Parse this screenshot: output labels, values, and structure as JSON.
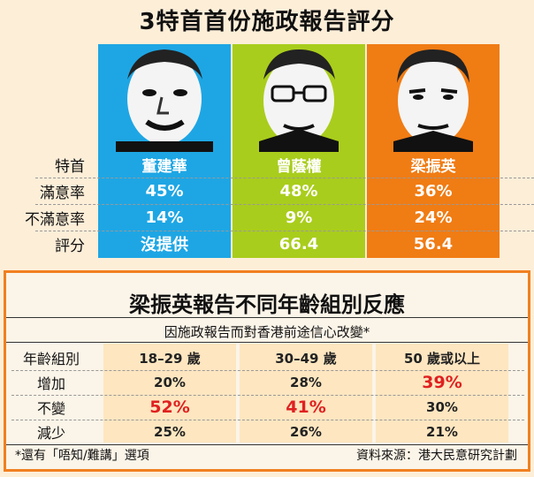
{
  "title": "3特首首份施政報告評分",
  "colors": {
    "tung": "#1ea6e4",
    "tsang": "#a9cd1c",
    "leung": "#f07c14",
    "highlight": "#e02020",
    "frame": "#f08020"
  },
  "chart_data": [
    {
      "type": "table",
      "title": "3特首首份施政報告評分",
      "row_labels": [
        "特首",
        "滿意率",
        "不滿意率",
        "評分"
      ],
      "columns": [
        {
          "name": "董建華",
          "values": [
            "45%",
            "14%",
            "沒提供"
          ]
        },
        {
          "name": "曾蔭權",
          "values": [
            "48%",
            "9%",
            "66.4"
          ]
        },
        {
          "name": "梁振英",
          "values": [
            "36%",
            "24%",
            "56.4"
          ]
        }
      ]
    },
    {
      "type": "table",
      "title": "梁振英報告不同年齡組別反應",
      "subtitle": "因施政報告而對香港前途信心改變*",
      "row_header": "年齡組別",
      "categories": [
        "18–29 歲",
        "30–49 歲",
        "50 歲或以上"
      ],
      "rows": [
        {
          "label": "增加",
          "values": [
            "20%",
            "28%",
            "39%"
          ],
          "highlight": [
            false,
            false,
            true
          ]
        },
        {
          "label": "不變",
          "values": [
            "52%",
            "41%",
            "30%"
          ],
          "highlight": [
            true,
            true,
            false
          ]
        },
        {
          "label": "減少",
          "values": [
            "25%",
            "26%",
            "21%"
          ],
          "highlight": [
            false,
            false,
            false
          ]
        }
      ]
    }
  ],
  "footnote": "*還有「唔知/難講」選項",
  "source": "資料來源：港大民意研究計劃",
  "portraits": [
    {
      "icon": "tung-portrait-icon"
    },
    {
      "icon": "tsang-portrait-icon"
    },
    {
      "icon": "leung-portrait-icon"
    }
  ]
}
